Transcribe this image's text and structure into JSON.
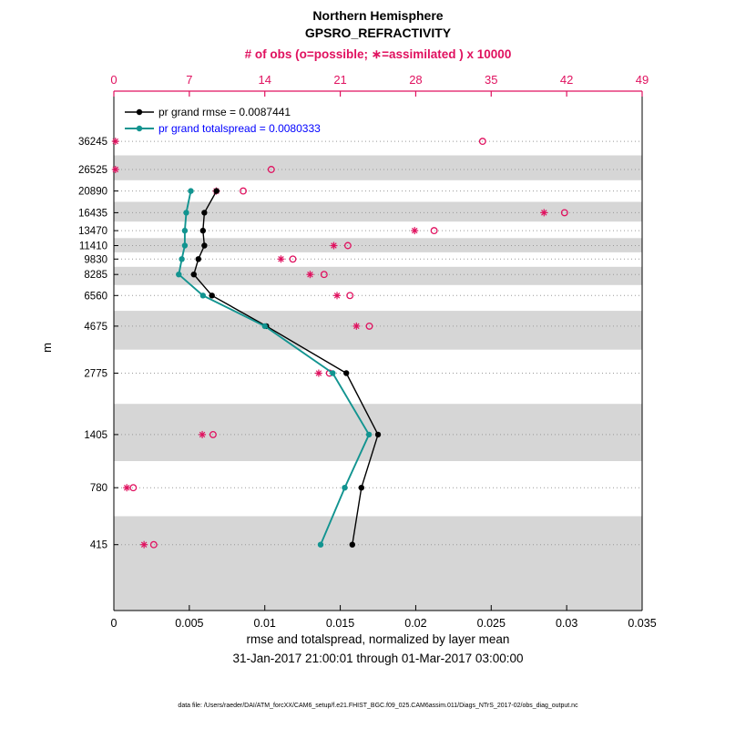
{
  "page": {
    "footer": "data file: /Users/raeder/DAI/ATM_forcXX/CAM6_setup/f.e21.FHIST_BGC.f09_025.CAM6assim.011/Diags_NTrS_2017-02/obs_diag_output.nc"
  },
  "chart_data": {
    "type": "line",
    "title": "Northern Hemisphere",
    "subtitle": "GPSRO_REFRACTIVITY",
    "top_xlabel": "# of obs (o=possible; ∗=assimilated ) x 10000",
    "xlabel": "rmse and totalspread, normalized by layer mean",
    "xlabel2": "31-Jan-2017 21:00:01 through 01-Mar-2017 03:00:00",
    "ylabel": "m",
    "x_bottom": {
      "min": 0,
      "max": 0.035,
      "ticks": [
        0,
        0.005,
        0.01,
        0.015,
        0.02,
        0.025,
        0.03,
        0.035
      ],
      "tick_labels": [
        "0",
        "0.005",
        "0.01",
        "0.015",
        "0.02",
        "0.025",
        "0.03",
        "0.035"
      ]
    },
    "x_top": {
      "min": 0,
      "max": 49,
      "ticks": [
        0,
        7,
        14,
        21,
        28,
        35,
        42,
        49
      ],
      "tick_labels": [
        "0",
        "7",
        "14",
        "21",
        "28",
        "35",
        "42",
        "49"
      ]
    },
    "y": {
      "scale": "log",
      "min": 200,
      "max": 63200,
      "levels": [
        36245,
        26525,
        20890,
        16435,
        13470,
        11410,
        9830,
        8285,
        6560,
        4675,
        2775,
        1405,
        780,
        415
      ],
      "level_labels": [
        "36245",
        "26525",
        "20890",
        "16435",
        "13470",
        "11410",
        "9830",
        "8285",
        "6560",
        "4675",
        "2775",
        "1405",
        "780",
        "415"
      ]
    },
    "series": [
      {
        "name": "pr grand rmse = 0.0087441",
        "color": "#000000",
        "values": [
          null,
          null,
          0.0068,
          0.006,
          0.0059,
          0.006,
          0.0056,
          0.0053,
          0.0065,
          0.0101,
          0.0154,
          0.0175,
          0.0164,
          0.0158
        ]
      },
      {
        "name": "pr grand totalspread = 0.0080333",
        "color": "#129490",
        "values": [
          null,
          null,
          0.0051,
          0.0048,
          0.0047,
          0.0047,
          0.0045,
          0.0043,
          0.0059,
          0.01,
          0.0145,
          0.0169,
          0.0153,
          0.0137
        ]
      }
    ],
    "obs_counts": {
      "unit": "x 10000",
      "possible": [
        34.2,
        14.6,
        12.0,
        41.8,
        29.7,
        21.7,
        16.6,
        19.5,
        21.9,
        23.7,
        20.0,
        9.2,
        1.8,
        3.7
      ],
      "assimilated": [
        0.15,
        0.15,
        9.5,
        39.9,
        27.9,
        20.4,
        15.5,
        18.2,
        20.7,
        22.5,
        19.0,
        8.2,
        1.2,
        2.8
      ]
    },
    "legend": {
      "position": "top-left-inside",
      "entries": [
        "pr grand rmse = 0.0087441",
        "pr grand totalspread = 0.0080333"
      ],
      "text_colors": [
        "#000000",
        "#0000ff"
      ]
    },
    "colors": {
      "rmse": "#000000",
      "spread": "#129490",
      "obs": "#E0115F",
      "band": "#d6d6d6",
      "grid": "#999999",
      "axis": "#000000"
    },
    "grid": "horizontal-dotted",
    "legend_box": false
  }
}
